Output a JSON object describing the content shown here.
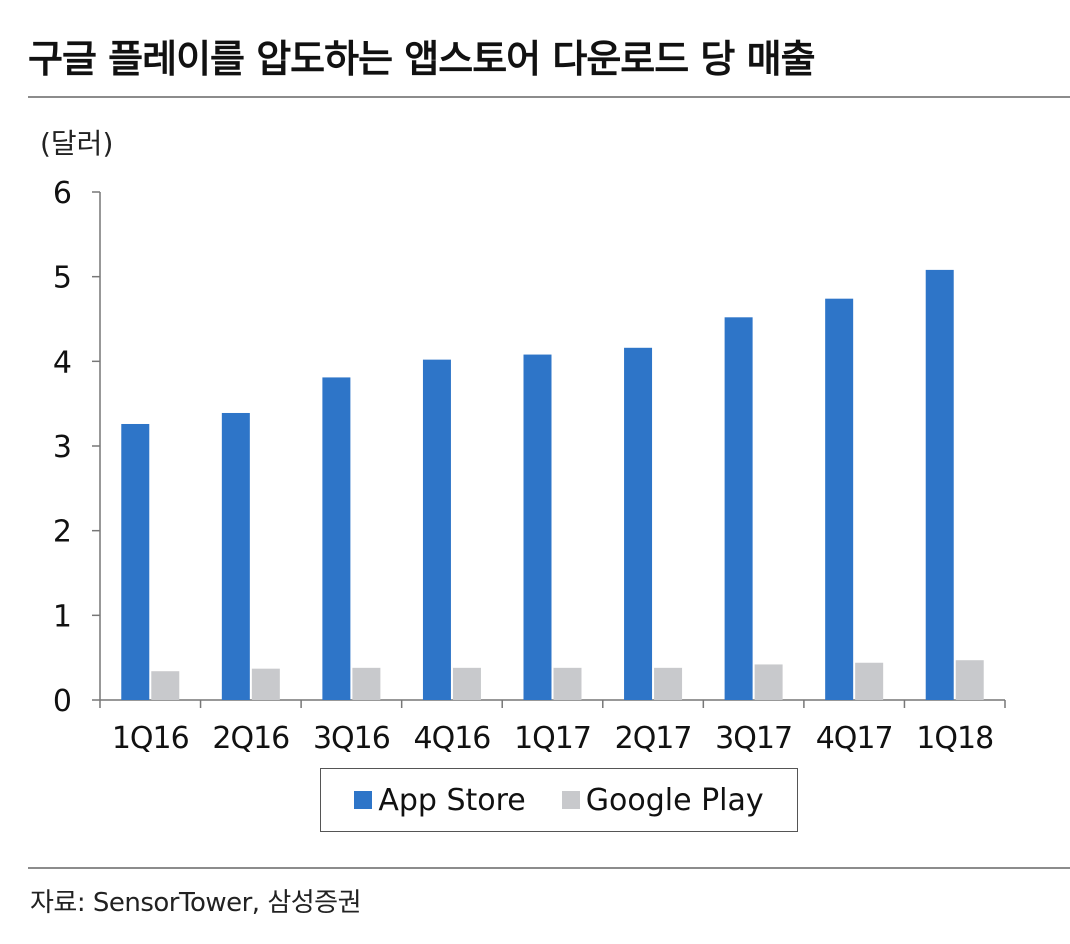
{
  "title": "구글 플레이를 압도하는 앱스토어 다운로드 당 매출",
  "source": "자료: SensorTower, 삼성증권",
  "chart_data": {
    "type": "bar",
    "unit_label": "(달러)",
    "categories": [
      "1Q16",
      "2Q16",
      "3Q16",
      "4Q16",
      "1Q17",
      "2Q17",
      "3Q17",
      "4Q17",
      "1Q18"
    ],
    "series": [
      {
        "name": "App Store",
        "color": "#2e75c8",
        "values": [
          3.26,
          3.39,
          3.81,
          4.02,
          4.08,
          4.16,
          4.52,
          4.74,
          5.08
        ]
      },
      {
        "name": "Google Play",
        "color": "#c8c9cc",
        "values": [
          0.34,
          0.37,
          0.38,
          0.38,
          0.38,
          0.38,
          0.42,
          0.44,
          0.47
        ]
      }
    ],
    "ylim": [
      0,
      6
    ],
    "yticks": [
      "0",
      "1",
      "2",
      "3",
      "4",
      "5",
      "6"
    ],
    "grid": false,
    "legend_position": "bottom-center"
  }
}
